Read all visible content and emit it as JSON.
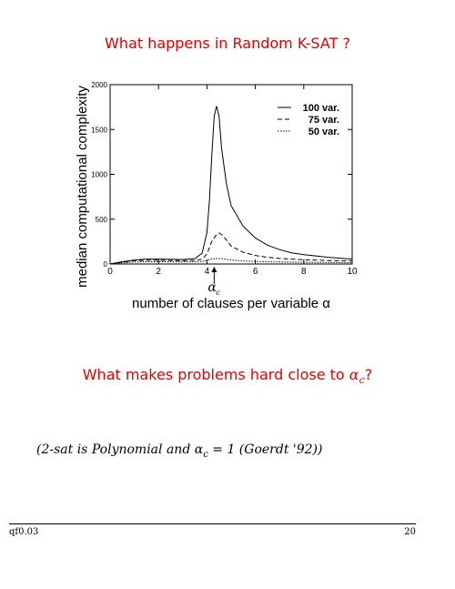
{
  "slide": {
    "title": "What happens in Random K-SAT ?",
    "question_prefix": "What makes problems hard close to ",
    "question_symbol": "α",
    "question_sub": "c",
    "question_suffix": "?",
    "note_text": "(2-sat is Polynomial and α",
    "note_sub": "c",
    "note_rest": " = 1 (Goerdt '92))",
    "footer_left": "qf0.03",
    "footer_right": "20",
    "accent_color": "#e00000"
  },
  "chart_data": {
    "type": "line",
    "xlabel": "number of clauses per variable  α",
    "ylabel": "median computational complexity",
    "xlim": [
      0,
      10
    ],
    "ylim": [
      0,
      2000
    ],
    "xticks": [
      0,
      2,
      4,
      6,
      8,
      10
    ],
    "yticks": [
      0,
      500,
      1000,
      1500,
      2000
    ],
    "legend_placement": "top-right",
    "annotation": {
      "symbol": "α",
      "sub": "c",
      "x": 4.3
    },
    "series": [
      {
        "name": "100 var.",
        "style": "solid",
        "x": [
          0,
          0.5,
          1,
          1.5,
          2,
          2.5,
          3,
          3.5,
          3.8,
          4.0,
          4.1,
          4.2,
          4.3,
          4.4,
          4.5,
          4.6,
          4.8,
          5.0,
          5.5,
          6,
          6.5,
          7,
          7.5,
          8,
          8.5,
          9,
          9.5,
          10
        ],
        "y": [
          0,
          25,
          45,
          55,
          55,
          52,
          50,
          60,
          120,
          350,
          700,
          1200,
          1650,
          1760,
          1650,
          1300,
          900,
          650,
          420,
          290,
          210,
          160,
          125,
          105,
          90,
          75,
          65,
          55
        ]
      },
      {
        "name": "75 var.",
        "style": "dashed",
        "x": [
          0,
          0.5,
          1,
          1.5,
          2,
          2.5,
          3,
          3.5,
          3.8,
          4.0,
          4.2,
          4.4,
          4.5,
          4.6,
          4.8,
          5.0,
          5.5,
          6,
          6.5,
          7,
          7.5,
          8,
          8.5,
          9,
          9.5,
          10
        ],
        "y": [
          0,
          20,
          38,
          42,
          42,
          40,
          38,
          40,
          55,
          110,
          250,
          330,
          345,
          330,
          270,
          200,
          130,
          95,
          75,
          62,
          55,
          48,
          44,
          40,
          37,
          35
        ]
      },
      {
        "name": "50 var.",
        "style": "dotted",
        "x": [
          0,
          0.5,
          1,
          1.5,
          2,
          2.5,
          3,
          3.5,
          3.8,
          4.0,
          4.2,
          4.4,
          4.6,
          4.8,
          5.0,
          5.5,
          6,
          6.5,
          7,
          7.5,
          8,
          8.5,
          9,
          9.5,
          10
        ],
        "y": [
          0,
          12,
          22,
          25,
          25,
          24,
          23,
          24,
          28,
          40,
          55,
          62,
          60,
          52,
          45,
          33,
          28,
          24,
          22,
          20,
          19,
          18,
          17,
          16,
          15
        ]
      }
    ]
  }
}
